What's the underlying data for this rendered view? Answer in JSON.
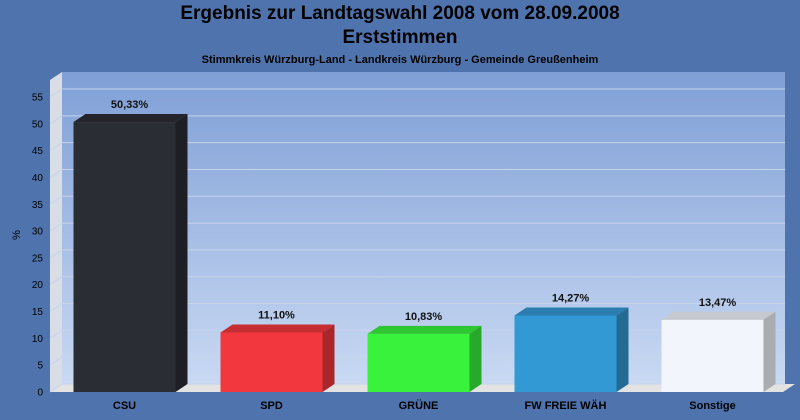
{
  "chart_data": {
    "type": "bar",
    "title": "Ergebnis zur Landtagswahl 2008 vom 28.09.2008",
    "subtitle_line1": "Erststimmen",
    "subtitle_line2": "Stimmkreis Würzburg-Land - Landkreis Würzburg - Gemeinde Greußenheim",
    "ylabel": "%",
    "xlabel": "",
    "ylim": [
      0,
      55
    ],
    "yticks": [
      0,
      5,
      10,
      15,
      20,
      25,
      30,
      35,
      40,
      45,
      50,
      55
    ],
    "categories": [
      "CSU",
      "SPD",
      "GRÜNE",
      "FW FREIE WÄH",
      "Sonstige"
    ],
    "values": [
      50.33,
      11.1,
      10.83,
      14.27,
      13.47
    ],
    "value_labels": [
      "50,33%",
      "11,10%",
      "10,83%",
      "14,27%",
      "13,47%"
    ],
    "colors": [
      "#2b2d35",
      "#f2383e",
      "#38f23c",
      "#3399d4",
      "#f2f5fc"
    ],
    "grid": true,
    "legend": "none"
  }
}
